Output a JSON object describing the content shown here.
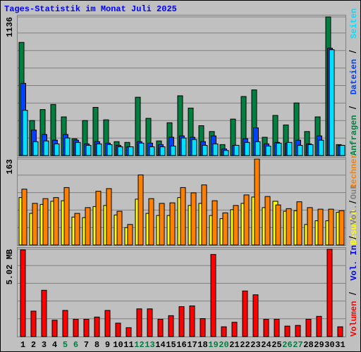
{
  "chart_data": [
    {
      "type": "bar",
      "title": "Tages-Statistik im Monat Juli 2025",
      "ylim": [
        0,
        1136
      ],
      "yticks": [
        1136
      ],
      "series": [
        {
          "name": "Anfragen",
          "color": "#008040",
          "values": [
            927,
            287,
            377,
            419,
            317,
            138,
            287,
            395,
            293,
            114,
            108,
            478,
            305,
            120,
            269,
            490,
            389,
            245,
            197,
            90,
            299,
            484,
            538,
            150,
            329,
            251,
            431,
            197,
            317,
            1136,
            90
          ]
        },
        {
          "name": "Dateien",
          "color": "#0040ff",
          "values": [
            592,
            209,
            173,
            126,
            173,
            126,
            96,
            114,
            102,
            84,
            72,
            114,
            102,
            90,
            150,
            161,
            150,
            114,
            161,
            54,
            84,
            138,
            227,
            96,
            108,
            102,
            126,
            96,
            161,
            880,
            84
          ]
        },
        {
          "name": "Seiten",
          "color": "#00e0ff",
          "values": [
            371,
            114,
            120,
            96,
            144,
            108,
            84,
            96,
            90,
            72,
            72,
            102,
            72,
            72,
            78,
            144,
            132,
            84,
            96,
            42,
            84,
            108,
            114,
            78,
            102,
            108,
            84,
            90,
            126,
            867,
            84
          ]
        }
      ]
    },
    {
      "type": "bar",
      "ylim": [
        0,
        163
      ],
      "yticks": [
        163
      ],
      "series": [
        {
          "name": "Besuche",
          "color": "#ffff00",
          "values": [
            90,
            60,
            77,
            83,
            84,
            53,
            52,
            73,
            75,
            57,
            33,
            87,
            60,
            56,
            56,
            90,
            75,
            79,
            56,
            50,
            67,
            79,
            91,
            71,
            83,
            64,
            65,
            39,
            46,
            46,
            62
          ]
        },
        {
          "name": "Rechner",
          "color": "#ff8000",
          "values": [
            106,
            79,
            88,
            90,
            109,
            60,
            71,
            102,
            107,
            64,
            39,
            133,
            88,
            79,
            80,
            109,
            99,
            114,
            84,
            61,
            75,
            95,
            163,
            92,
            76,
            69,
            82,
            71,
            68,
            68,
            65
          ]
        }
      ]
    },
    {
      "type": "bar",
      "ylim": [
        0,
        5.02
      ],
      "yticks": [
        {
          "value": 5.02,
          "label": "5.02 MB"
        }
      ],
      "categories": [
        "1",
        "2",
        "3",
        "4",
        "5",
        "6",
        "7",
        "8",
        "9",
        "10",
        "11",
        "12",
        "13",
        "14",
        "15",
        "16",
        "17",
        "18",
        "19",
        "20",
        "21",
        "22",
        "23",
        "24",
        "25",
        "26",
        "27",
        "28",
        "29",
        "30",
        "31"
      ],
      "category_colors": [
        "#000000",
        "#000000",
        "#000000",
        "#000000",
        "#008040",
        "#008040",
        "#000000",
        "#000000",
        "#000000",
        "#000000",
        "#000000",
        "#008040",
        "#008040",
        "#000000",
        "#000000",
        "#000000",
        "#000000",
        "#000000",
        "#008040",
        "#008040",
        "#000000",
        "#000000",
        "#000000",
        "#000000",
        "#000000",
        "#008040",
        "#008040",
        "#000000",
        "#000000",
        "#000000",
        "#000000"
      ],
      "series": [
        {
          "name": "Volumen",
          "color": "#ff0000",
          "values": [
            4.98,
            1.46,
            2.66,
            0.94,
            1.5,
            0.99,
            0.99,
            1.12,
            1.5,
            0.77,
            0.51,
            1.59,
            1.59,
            0.99,
            1.2,
            1.72,
            1.76,
            1.03,
            4.72,
            0.56,
            0.82,
            2.62,
            2.4,
            0.99,
            0.99,
            0.6,
            0.64,
            0.99,
            1.16,
            5.02,
            0.56
          ]
        }
      ],
      "extra_legend": [
        {
          "name": "Vol. In",
          "color": "#0000ff"
        },
        {
          "name": "Vol. Out",
          "color": "#808080"
        }
      ]
    }
  ]
}
